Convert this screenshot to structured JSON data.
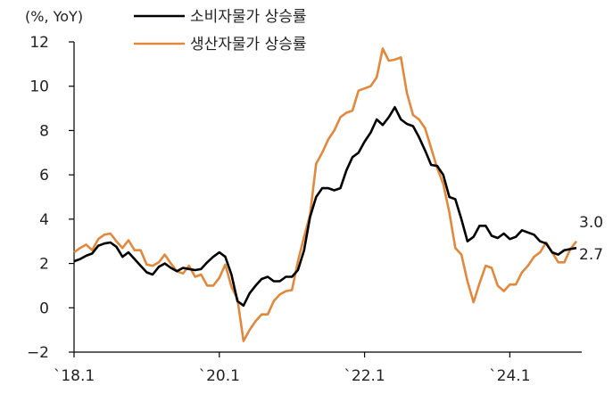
{
  "chart_data": {
    "type": "line",
    "unit": "(%, YoY)",
    "ylim": [
      -2,
      12
    ],
    "yticks": [
      -2,
      0,
      2,
      4,
      6,
      8,
      10,
      12
    ],
    "xticks": [
      {
        "x": 2018.0,
        "label": "`18.1"
      },
      {
        "x": 2020.0,
        "label": "`20.1"
      },
      {
        "x": 2022.0,
        "label": "`22.1"
      },
      {
        "x": 2024.0,
        "label": "`24.1"
      }
    ],
    "xlim": [
      2018.0,
      2024.917
    ],
    "grid": false,
    "legend_position": "top",
    "series": [
      {
        "name": "소비자물가 상승률",
        "color": "#000000",
        "end_label": "2.7",
        "points": [
          [
            2018.0,
            2.1
          ],
          [
            2018.083,
            2.2
          ],
          [
            2018.167,
            2.35
          ],
          [
            2018.25,
            2.45
          ],
          [
            2018.333,
            2.8
          ],
          [
            2018.417,
            2.9
          ],
          [
            2018.5,
            2.95
          ],
          [
            2018.583,
            2.75
          ],
          [
            2018.667,
            2.3
          ],
          [
            2018.75,
            2.5
          ],
          [
            2018.833,
            2.2
          ],
          [
            2018.917,
            1.9
          ],
          [
            2019.0,
            1.6
          ],
          [
            2019.083,
            1.5
          ],
          [
            2019.167,
            1.85
          ],
          [
            2019.25,
            2.0
          ],
          [
            2019.333,
            1.8
          ],
          [
            2019.417,
            1.65
          ],
          [
            2019.5,
            1.8
          ],
          [
            2019.583,
            1.75
          ],
          [
            2019.667,
            1.7
          ],
          [
            2019.75,
            1.75
          ],
          [
            2019.833,
            2.05
          ],
          [
            2019.917,
            2.3
          ],
          [
            2020.0,
            2.5
          ],
          [
            2020.083,
            2.3
          ],
          [
            2020.167,
            1.5
          ],
          [
            2020.25,
            0.3
          ],
          [
            2020.333,
            0.1
          ],
          [
            2020.417,
            0.65
          ],
          [
            2020.5,
            1.0
          ],
          [
            2020.583,
            1.3
          ],
          [
            2020.667,
            1.4
          ],
          [
            2020.75,
            1.2
          ],
          [
            2020.833,
            1.2
          ],
          [
            2020.917,
            1.4
          ],
          [
            2021.0,
            1.4
          ],
          [
            2021.083,
            1.7
          ],
          [
            2021.167,
            2.6
          ],
          [
            2021.25,
            4.1
          ],
          [
            2021.333,
            5.0
          ],
          [
            2021.417,
            5.4
          ],
          [
            2021.5,
            5.4
          ],
          [
            2021.583,
            5.3
          ],
          [
            2021.667,
            5.4
          ],
          [
            2021.75,
            6.2
          ],
          [
            2021.833,
            6.8
          ],
          [
            2021.917,
            7.0
          ],
          [
            2022.0,
            7.5
          ],
          [
            2022.083,
            7.9
          ],
          [
            2022.167,
            8.5
          ],
          [
            2022.25,
            8.25
          ],
          [
            2022.333,
            8.6
          ],
          [
            2022.417,
            9.05
          ],
          [
            2022.5,
            8.5
          ],
          [
            2022.583,
            8.3
          ],
          [
            2022.667,
            8.2
          ],
          [
            2022.75,
            7.7
          ],
          [
            2022.833,
            7.1
          ],
          [
            2022.917,
            6.45
          ],
          [
            2023.0,
            6.4
          ],
          [
            2023.083,
            6.0
          ],
          [
            2023.167,
            5.0
          ],
          [
            2023.25,
            4.9
          ],
          [
            2023.333,
            4.0
          ],
          [
            2023.417,
            3.0
          ],
          [
            2023.5,
            3.2
          ],
          [
            2023.583,
            3.7
          ],
          [
            2023.667,
            3.7
          ],
          [
            2023.75,
            3.25
          ],
          [
            2023.833,
            3.15
          ],
          [
            2023.917,
            3.35
          ],
          [
            2024.0,
            3.1
          ],
          [
            2024.083,
            3.2
          ],
          [
            2024.167,
            3.5
          ],
          [
            2024.25,
            3.4
          ],
          [
            2024.333,
            3.3
          ],
          [
            2024.417,
            3.0
          ],
          [
            2024.5,
            2.9
          ],
          [
            2024.583,
            2.5
          ],
          [
            2024.667,
            2.4
          ],
          [
            2024.75,
            2.6
          ],
          [
            2024.833,
            2.65
          ],
          [
            2024.917,
            2.7
          ]
        ]
      },
      {
        "name": "생산자물가 상승률",
        "color": "#e0893e",
        "end_label": "3.0",
        "points": [
          [
            2018.0,
            2.5
          ],
          [
            2018.083,
            2.7
          ],
          [
            2018.167,
            2.85
          ],
          [
            2018.25,
            2.6
          ],
          [
            2018.333,
            3.1
          ],
          [
            2018.417,
            3.3
          ],
          [
            2018.5,
            3.35
          ],
          [
            2018.583,
            3.0
          ],
          [
            2018.667,
            2.7
          ],
          [
            2018.75,
            3.05
          ],
          [
            2018.833,
            2.6
          ],
          [
            2018.917,
            2.6
          ],
          [
            2019.0,
            1.95
          ],
          [
            2019.083,
            1.9
          ],
          [
            2019.167,
            2.05
          ],
          [
            2019.25,
            2.4
          ],
          [
            2019.333,
            2.0
          ],
          [
            2019.417,
            1.65
          ],
          [
            2019.5,
            1.55
          ],
          [
            2019.583,
            1.9
          ],
          [
            2019.667,
            1.4
          ],
          [
            2019.75,
            1.5
          ],
          [
            2019.833,
            1.0
          ],
          [
            2019.917,
            1.0
          ],
          [
            2020.0,
            1.35
          ],
          [
            2020.083,
            1.95
          ],
          [
            2020.167,
            0.95
          ],
          [
            2020.25,
            0.4
          ],
          [
            2020.333,
            -1.5
          ],
          [
            2020.417,
            -1.0
          ],
          [
            2020.5,
            -0.6
          ],
          [
            2020.583,
            -0.3
          ],
          [
            2020.667,
            -0.3
          ],
          [
            2020.75,
            0.3
          ],
          [
            2020.833,
            0.6
          ],
          [
            2020.917,
            0.75
          ],
          [
            2021.0,
            0.8
          ],
          [
            2021.083,
            2.1
          ],
          [
            2021.167,
            3.2
          ],
          [
            2021.25,
            4.2
          ],
          [
            2021.333,
            6.5
          ],
          [
            2021.417,
            7.0
          ],
          [
            2021.5,
            7.6
          ],
          [
            2021.583,
            8.0
          ],
          [
            2021.667,
            8.6
          ],
          [
            2021.75,
            8.8
          ],
          [
            2021.833,
            8.9
          ],
          [
            2021.917,
            9.8
          ],
          [
            2022.0,
            9.9
          ],
          [
            2022.083,
            10.0
          ],
          [
            2022.167,
            10.4
          ],
          [
            2022.25,
            11.7
          ],
          [
            2022.333,
            11.15
          ],
          [
            2022.417,
            11.2
          ],
          [
            2022.5,
            11.3
          ],
          [
            2022.583,
            9.7
          ],
          [
            2022.667,
            8.7
          ],
          [
            2022.75,
            8.5
          ],
          [
            2022.833,
            8.1
          ],
          [
            2022.917,
            7.2
          ],
          [
            2023.0,
            6.3
          ],
          [
            2023.083,
            5.6
          ],
          [
            2023.167,
            4.3
          ],
          [
            2023.25,
            2.7
          ],
          [
            2023.333,
            2.4
          ],
          [
            2023.417,
            1.2
          ],
          [
            2023.5,
            0.25
          ],
          [
            2023.583,
            1.1
          ],
          [
            2023.667,
            1.9
          ],
          [
            2023.75,
            1.8
          ],
          [
            2023.833,
            1.0
          ],
          [
            2023.917,
            0.75
          ],
          [
            2024.0,
            1.05
          ],
          [
            2024.083,
            1.05
          ],
          [
            2024.167,
            1.6
          ],
          [
            2024.25,
            1.9
          ],
          [
            2024.333,
            2.3
          ],
          [
            2024.417,
            2.5
          ],
          [
            2024.5,
            2.95
          ],
          [
            2024.583,
            2.5
          ],
          [
            2024.667,
            2.05
          ],
          [
            2024.75,
            2.05
          ],
          [
            2024.833,
            2.65
          ],
          [
            2024.917,
            3.0
          ]
        ]
      }
    ]
  }
}
